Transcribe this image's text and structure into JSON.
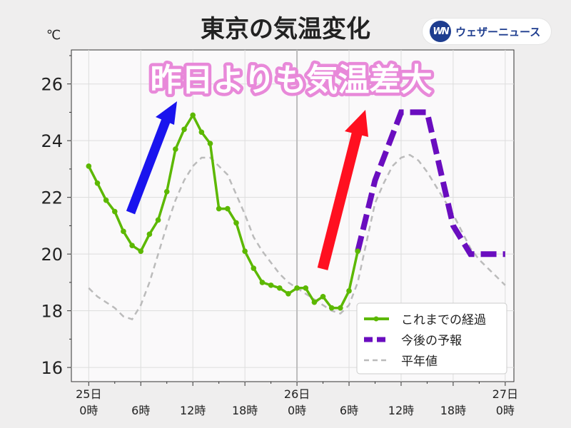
{
  "header": {
    "title": "東京の気温変化",
    "unit": "℃",
    "brand_mark": "WN",
    "brand_text": "ウェザーニュース"
  },
  "annotation": {
    "headline": "昨日よりも気温差大",
    "headline_color": "#ffffff",
    "headline_outline": "#e889d9"
  },
  "colors": {
    "observed": "#5cb800",
    "forecast": "#6a0dbf",
    "normal": "#bbbbbb",
    "arrow_blue": "#1a14ee",
    "arrow_red": "#ff1020",
    "plot_bg": "#faf9fa",
    "grid": "#dddddd"
  },
  "chart_data": {
    "type": "line",
    "title": "東京の気温変化",
    "ylabel": "℃",
    "ylim": [
      15.5,
      27.2
    ],
    "yticks": [
      16,
      18,
      20,
      22,
      24,
      26
    ],
    "xlim": [
      -2,
      49
    ],
    "xticks": [
      {
        "x": 0,
        "label": [
          "25日",
          "0時"
        ]
      },
      {
        "x": 6,
        "label": [
          "",
          "6時"
        ]
      },
      {
        "x": 12,
        "label": [
          "",
          "12時"
        ]
      },
      {
        "x": 18,
        "label": [
          "",
          "18時"
        ]
      },
      {
        "x": 24,
        "label": [
          "26日",
          "0時"
        ]
      },
      {
        "x": 30,
        "label": [
          "",
          "6時"
        ]
      },
      {
        "x": 36,
        "label": [
          "",
          "12時"
        ]
      },
      {
        "x": 42,
        "label": [
          "",
          "18時"
        ]
      },
      {
        "x": 48,
        "label": [
          "27日",
          "0時"
        ]
      }
    ],
    "x_unit": "hours from 25日0時",
    "grid": true,
    "legend_position": "bottom-right",
    "series": [
      {
        "name": "これまでの経過",
        "style": "solid-markers",
        "x": [
          0,
          1,
          2,
          3,
          4,
          5,
          6,
          7,
          8,
          9,
          10,
          11,
          12,
          13,
          14,
          15,
          16,
          17,
          18,
          19,
          20,
          21,
          22,
          23,
          24,
          25,
          26,
          27,
          28,
          29,
          30,
          31
        ],
        "values": [
          23.1,
          22.5,
          21.9,
          21.5,
          20.8,
          20.3,
          20.1,
          20.7,
          21.2,
          22.2,
          23.7,
          24.4,
          24.9,
          24.3,
          23.9,
          21.6,
          21.6,
          21.1,
          20.1,
          19.5,
          19.0,
          18.9,
          18.8,
          18.6,
          18.8,
          18.8,
          18.3,
          18.5,
          18.1,
          18.1,
          18.7,
          20.1
        ]
      },
      {
        "name": "今後の予報",
        "style": "dashed-thick",
        "x": [
          31,
          33,
          36,
          39,
          42,
          44,
          48
        ],
        "values": [
          20.1,
          22.6,
          25.0,
          25.0,
          21.0,
          20.0,
          20.0
        ]
      },
      {
        "name": "平年値",
        "style": "dashed-thin",
        "x": [
          0,
          1,
          2,
          3,
          4,
          5,
          6,
          7,
          8,
          9,
          10,
          11,
          12,
          13,
          14,
          15,
          16,
          17,
          18,
          19,
          20,
          21,
          22,
          23,
          24,
          25,
          26,
          27,
          28,
          29,
          30,
          31,
          32,
          33,
          34,
          35,
          36,
          37,
          38,
          39,
          40,
          41,
          42,
          43,
          44,
          45,
          46,
          47,
          48
        ],
        "values": [
          18.8,
          18.5,
          18.3,
          18.1,
          17.8,
          17.7,
          18.2,
          19.0,
          20.0,
          21.0,
          21.9,
          22.6,
          23.1,
          23.4,
          23.4,
          23.1,
          22.8,
          22.1,
          21.4,
          20.6,
          20.1,
          19.7,
          19.3,
          19.0,
          18.8,
          18.6,
          18.4,
          18.2,
          18.0,
          17.9,
          18.2,
          19.0,
          20.4,
          21.8,
          22.5,
          23.1,
          23.4,
          23.5,
          23.3,
          22.9,
          22.4,
          21.9,
          21.4,
          20.8,
          20.2,
          19.8,
          19.5,
          19.2,
          18.9
        ]
      }
    ]
  }
}
